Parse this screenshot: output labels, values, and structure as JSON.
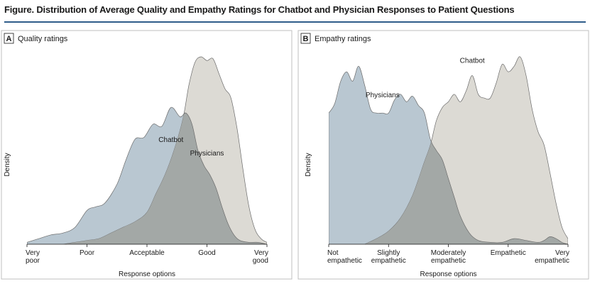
{
  "figure_title": "Figure. Distribution of Average Quality and Empathy Ratings for Chatbot and Physician Responses to Patient Questions",
  "colors": {
    "physicians_fill": "#b9c7d1",
    "chatbot_fill": "#dcdad4",
    "overlap_fill": "#a3a8a6",
    "outline": "#6b6b6b",
    "title_rule": "#2f5d8a"
  },
  "chart_data": [
    {
      "type": "area",
      "panel_letter": "A",
      "title": "Quality ratings",
      "xlabel": "Response options",
      "ylabel": "Density",
      "xlim": [
        1,
        5
      ],
      "ylim": [
        0,
        1.0
      ],
      "x_ticks": [
        1,
        2,
        3,
        4,
        5
      ],
      "x_tick_labels": [
        [
          "Very",
          "poor"
        ],
        [
          "Poor"
        ],
        [
          "Acceptable"
        ],
        [
          "Good"
        ],
        [
          "Very",
          "good"
        ]
      ],
      "series": [
        {
          "name": "Physicians",
          "x": [
            1.0,
            1.2,
            1.4,
            1.6,
            1.8,
            2.0,
            2.15,
            2.3,
            2.5,
            2.65,
            2.8,
            2.95,
            3.1,
            3.25,
            3.4,
            3.55,
            3.65,
            3.75,
            3.85,
            3.95,
            4.05,
            4.15,
            4.25,
            4.35,
            4.45,
            4.55,
            4.7,
            4.85,
            5.0
          ],
          "values": [
            0.01,
            0.03,
            0.05,
            0.06,
            0.09,
            0.18,
            0.2,
            0.22,
            0.32,
            0.45,
            0.56,
            0.57,
            0.64,
            0.63,
            0.73,
            0.68,
            0.7,
            0.64,
            0.5,
            0.42,
            0.37,
            0.3,
            0.2,
            0.11,
            0.05,
            0.02,
            0.01,
            0.01,
            0.0
          ]
        },
        {
          "name": "Chatbot",
          "x": [
            1.6,
            1.8,
            2.0,
            2.2,
            2.4,
            2.6,
            2.8,
            3.0,
            3.15,
            3.3,
            3.45,
            3.6,
            3.7,
            3.8,
            3.9,
            4.0,
            4.1,
            4.2,
            4.3,
            4.4,
            4.5,
            4.6,
            4.7,
            4.8,
            4.9,
            5.0
          ],
          "values": [
            0.0,
            0.01,
            0.02,
            0.03,
            0.06,
            0.09,
            0.12,
            0.17,
            0.27,
            0.37,
            0.5,
            0.67,
            0.85,
            0.97,
            1.0,
            0.98,
            0.99,
            0.91,
            0.83,
            0.78,
            0.62,
            0.4,
            0.2,
            0.08,
            0.03,
            0.01
          ]
        }
      ],
      "annotations": [
        {
          "text": "Chatbot",
          "series": "Chatbot"
        },
        {
          "text": "Physicians",
          "series": "Physicians"
        }
      ]
    },
    {
      "type": "area",
      "panel_letter": "B",
      "title": "Empathy ratings",
      "xlabel": "Response options",
      "ylabel": "Density",
      "xlim": [
        1,
        5
      ],
      "ylim": [
        0,
        1.0
      ],
      "x_ticks": [
        1,
        2,
        3,
        4,
        5
      ],
      "x_tick_labels": [
        [
          "Not",
          "empathetic"
        ],
        [
          "Slightly",
          "empathetic"
        ],
        [
          "Moderately",
          "empathetic"
        ],
        [
          "Empathetic"
        ],
        [
          "Very",
          "empathetic"
        ]
      ],
      "series": [
        {
          "name": "Physicians",
          "x": [
            1.0,
            1.1,
            1.2,
            1.3,
            1.4,
            1.5,
            1.6,
            1.7,
            1.8,
            1.9,
            2.0,
            2.1,
            2.2,
            2.3,
            2.4,
            2.5,
            2.6,
            2.7,
            2.8,
            2.9,
            3.0,
            3.1,
            3.2,
            3.35,
            3.5,
            3.7,
            3.9,
            4.1,
            4.3,
            4.5,
            4.6,
            4.7,
            4.8,
            4.9,
            5.0
          ],
          "values": [
            0.7,
            0.75,
            0.87,
            0.92,
            0.87,
            0.95,
            0.85,
            0.72,
            0.7,
            0.7,
            0.7,
            0.77,
            0.8,
            0.76,
            0.79,
            0.74,
            0.7,
            0.56,
            0.5,
            0.45,
            0.35,
            0.25,
            0.15,
            0.06,
            0.02,
            0.01,
            0.01,
            0.03,
            0.02,
            0.01,
            0.02,
            0.04,
            0.03,
            0.01,
            0.0
          ]
        },
        {
          "name": "Chatbot",
          "x": [
            1.6,
            1.8,
            2.0,
            2.2,
            2.4,
            2.6,
            2.7,
            2.8,
            2.9,
            3.0,
            3.1,
            3.2,
            3.3,
            3.4,
            3.5,
            3.6,
            3.7,
            3.8,
            3.9,
            4.0,
            4.1,
            4.2,
            4.3,
            4.4,
            4.5,
            4.6,
            4.7,
            4.8,
            4.9,
            5.0
          ],
          "values": [
            0.0,
            0.03,
            0.07,
            0.14,
            0.26,
            0.44,
            0.53,
            0.66,
            0.73,
            0.76,
            0.8,
            0.76,
            0.82,
            0.9,
            0.8,
            0.78,
            0.78,
            0.86,
            0.96,
            0.92,
            0.95,
            1.0,
            0.9,
            0.72,
            0.6,
            0.53,
            0.38,
            0.22,
            0.09,
            0.03
          ]
        }
      ],
      "annotations": [
        {
          "text": "Physicians",
          "series": "Physicians"
        },
        {
          "text": "Chatbot",
          "series": "Chatbot"
        }
      ]
    }
  ]
}
